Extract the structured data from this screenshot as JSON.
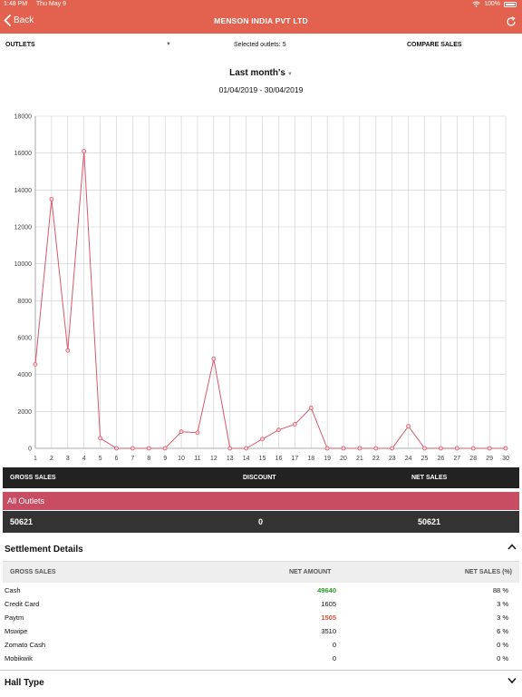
{
  "status_bar": {
    "time": "1:48 PM",
    "date": "Thu May 9",
    "battery": "100%"
  },
  "nav": {
    "back_label": "Back",
    "title": "MENSON INDIA PVT LTD"
  },
  "filters": {
    "outlets_label": "OUTLETS",
    "selected_outlets": "Selected outlets: 5",
    "compare_label": "COMPARE SALES"
  },
  "period": {
    "label": "Last month's",
    "date_range": "01/04/2019 - 30/04/2019"
  },
  "chart_data": {
    "type": "line",
    "x": [
      1,
      2,
      3,
      4,
      5,
      6,
      7,
      8,
      9,
      10,
      11,
      12,
      13,
      14,
      15,
      16,
      17,
      18,
      19,
      20,
      21,
      22,
      23,
      24,
      25,
      26,
      27,
      28,
      29,
      30
    ],
    "series": [
      {
        "values": [
          4550,
          13500,
          5300,
          16100,
          550,
          0,
          0,
          0,
          0,
          900,
          850,
          4850,
          0,
          0,
          500,
          1000,
          1300,
          2200,
          0,
          0,
          0,
          0,
          0,
          1200,
          0,
          0,
          0,
          0,
          0,
          0
        ]
      }
    ],
    "ylim": [
      0,
      18000
    ],
    "yticks": [
      0,
      2000,
      4000,
      6000,
      8000,
      10000,
      12000,
      14000,
      16000,
      18000
    ],
    "grid": true,
    "colors": {
      "line": "#d9586a",
      "grid": "#cccccc"
    }
  },
  "totals": {
    "headers": [
      "GROSS SALES",
      "DISCOUNT",
      "NET SALES"
    ],
    "outlet_label": "All Outlets",
    "values": [
      "50621",
      "0",
      "50621"
    ]
  },
  "settlement": {
    "title": "Settlement Details",
    "headers": [
      "GROSS SALES",
      "NET AMOUNT",
      "NET SALES (%)"
    ],
    "rows": [
      {
        "name": "Cash",
        "amount": "49640",
        "pct": "88 %"
      },
      {
        "name": "Credit Card",
        "amount": "1605",
        "pct": "3 %"
      },
      {
        "name": "Paytm",
        "amount": "1505",
        "pct": "3 %"
      },
      {
        "name": "Mswipe",
        "amount": "3510",
        "pct": "6 %"
      },
      {
        "name": "Zomato Cash",
        "amount": "0",
        "pct": "0 %"
      },
      {
        "name": "Mobikwik",
        "amount": "0",
        "pct": "0 %"
      }
    ]
  },
  "hall_type": {
    "title": "Hall Type"
  },
  "colors": {
    "brand": "#e3624f",
    "outlet_row": "#c84d63",
    "positive": "#2a9a2a",
    "negative": "#e0503c"
  }
}
